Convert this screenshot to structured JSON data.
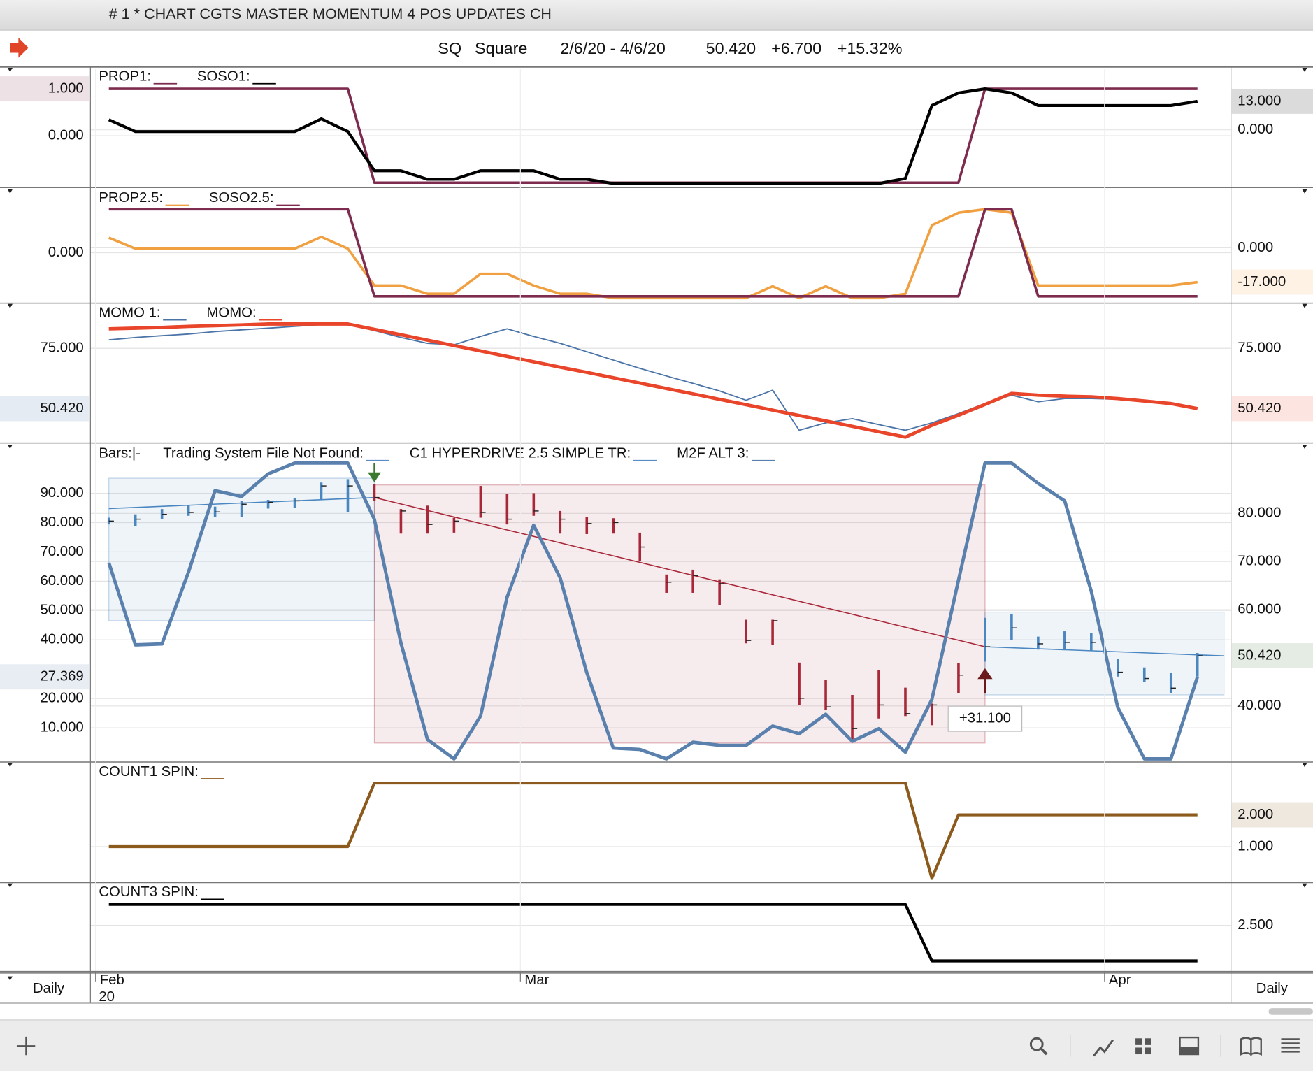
{
  "window": {
    "title": "# 1 * CHART CGTS MASTER MOMENTUM 4 POS UPDATES CH"
  },
  "header": {
    "symbol": "SQ",
    "name": "Square",
    "range": "2/6/20 - 4/6/20",
    "last": "50.420",
    "change": "+6.700",
    "change_pct": "+15.32%"
  },
  "footer": {
    "left_interval": "Daily",
    "right_interval": "Daily",
    "year": "20"
  },
  "chart_data": [
    {
      "type": "line",
      "ylim": [
        -1.07,
        1.43
      ],
      "yticks": [
        {
          "value": 0,
          "label": "0.000"
        }
      ],
      "y2lim": [
        -25.6,
        27.9
      ],
      "y2ticks": [
        {
          "value": 0,
          "label": "0.000"
        }
      ],
      "series": [
        {
          "name": "PROP1:",
          "color": "#7d2b4e",
          "width": 3,
          "axis": "y",
          "last_label": {
            "value": 1,
            "label": "1.000"
          },
          "values": [
            1,
            1,
            1,
            1,
            1,
            1,
            1,
            1,
            1,
            1,
            -1,
            -1,
            -1,
            -1,
            -1,
            -1,
            -1,
            -1,
            -1,
            -1,
            -1,
            -1,
            -1,
            -1,
            -1,
            -1,
            -1,
            -1,
            -1,
            -1,
            -1,
            -1,
            -1,
            1,
            1,
            1,
            1,
            1,
            1,
            1,
            1,
            1
          ]
        },
        {
          "name": "SOSO1:",
          "color": "#000000",
          "width": 3.5,
          "axis": "y2",
          "last_label": {
            "value": 13,
            "label": "13.000"
          },
          "values": [
            4.6,
            -0.8,
            -0.8,
            -0.8,
            -0.8,
            -0.8,
            -0.8,
            -0.8,
            5,
            -0.8,
            -18.7,
            -18.7,
            -22.6,
            -22.6,
            -18.7,
            -18.7,
            -18.7,
            -22.6,
            -22.6,
            -24.5,
            -24.5,
            -24.5,
            -24.5,
            -24.5,
            -24.5,
            -24.5,
            -24.5,
            -24.5,
            -24.5,
            -24.5,
            -22.2,
            11.1,
            16.8,
            18.7,
            16.8,
            11.1,
            11.1,
            11.1,
            11.1,
            11.1,
            11.1,
            13
          ]
        }
      ]
    },
    {
      "type": "line",
      "ylim": [
        -1.12,
        1.44
      ],
      "yticks": [
        {
          "value": 0,
          "label": "0.000"
        }
      ],
      "y2lim": [
        -26.6,
        28.6
      ],
      "y2ticks": [
        {
          "value": 0,
          "label": "0.000"
        }
      ],
      "series": [
        {
          "name": "PROP2.5:",
          "color": "#f0a040",
          "width": 3,
          "axis": "y2",
          "last_label": {
            "value": -17,
            "label": "-17.000"
          },
          "values": [
            5,
            -0.4,
            -0.4,
            -0.4,
            -0.4,
            -0.4,
            -0.4,
            -0.4,
            5.4,
            -0.4,
            -18.7,
            -18.7,
            -22.8,
            -22.8,
            -12.9,
            -12.9,
            -18.7,
            -22.8,
            -22.8,
            -24.9,
            -24.9,
            -24.9,
            -24.9,
            -24.9,
            -24.9,
            -19.1,
            -24.9,
            -19.1,
            -24.9,
            -24.9,
            -22.8,
            11.2,
            17.4,
            19.1,
            17.4,
            -18.7,
            -18.7,
            -18.7,
            -18.7,
            -18.7,
            -18.7,
            -17
          ]
        },
        {
          "name": "SOSO2.5:",
          "color": "#7d2b4e",
          "width": 3,
          "axis": "y",
          "values": [
            1,
            1,
            1,
            1,
            1,
            1,
            1,
            1,
            1,
            1,
            -1,
            -1,
            -1,
            -1,
            -1,
            -1,
            -1,
            -1,
            -1,
            -1,
            -1,
            -1,
            -1,
            -1,
            -1,
            -1,
            -1,
            -1,
            -1,
            -1,
            -1,
            -1,
            -1,
            1,
            1,
            -1,
            -1,
            -1,
            -1,
            -1,
            -1,
            -1
          ]
        }
      ]
    },
    {
      "type": "line",
      "ylim": [
        37.1,
        92.7
      ],
      "yticks": [
        {
          "value": 75,
          "label": "75.000"
        }
      ],
      "y2lim": [
        37.1,
        92.7
      ],
      "y2ticks": [
        {
          "value": 75,
          "label": "75.000"
        }
      ],
      "series": [
        {
          "name": "MOMO 1:",
          "color": "#4a74a8",
          "width": 1.5,
          "axis": "y",
          "last_label": {
            "value": 50.42,
            "label": "50.420"
          },
          "values": [
            78.4,
            79.4,
            80.1,
            80.8,
            81.8,
            82.5,
            83.2,
            83.9,
            84.6,
            84.9,
            82.2,
            79.4,
            77.0,
            76.4,
            79.8,
            82.9,
            79.8,
            77.0,
            73.6,
            70.2,
            66.8,
            63.7,
            60.7,
            57.6,
            53.8,
            57.9,
            41.6,
            44.6,
            46.3,
            43.9,
            41.6,
            44.6,
            48.4,
            52.5,
            55.9,
            53.2,
            54.5,
            54.5,
            54.2,
            53.2,
            52.1,
            50.42
          ]
        },
        {
          "name": "MOMO:",
          "color": "#e8452a",
          "width": 4,
          "axis": "y2",
          "last_label": {
            "value": 50.42,
            "label": "50.420"
          },
          "values": [
            82.9,
            83.2,
            83.5,
            83.9,
            84.2,
            84.5,
            84.9,
            84.9,
            84.9,
            84.9,
            82.7,
            80.5,
            78.3,
            76.1,
            73.9,
            71.7,
            69.5,
            67.3,
            65.2,
            63.0,
            60.8,
            58.6,
            56.4,
            54.2,
            52.0,
            49.8,
            47.6,
            45.4,
            43.2,
            41.0,
            38.8,
            43.6,
            47.7,
            52.1,
            56.6,
            55.9,
            55.5,
            55.2,
            54.5,
            53.5,
            52.5,
            50.42
          ]
        }
      ]
    },
    {
      "type": "bars",
      "ylim": [
        -1.1,
        106.3
      ],
      "yticks": [
        {
          "value": 10,
          "label": "10.000"
        },
        {
          "value": 20,
          "label": "20.000"
        },
        {
          "value": 40,
          "label": "40.000"
        },
        {
          "value": 50,
          "label": "50.000"
        },
        {
          "value": 60,
          "label": "60.000"
        },
        {
          "value": 70,
          "label": "70.000"
        },
        {
          "value": 80,
          "label": "80.000"
        },
        {
          "value": 90,
          "label": "90.000"
        }
      ],
      "y2lim": [
        28.7,
        94.1
      ],
      "y2ticks": [
        {
          "value": 40,
          "label": "40.000"
        },
        {
          "value": 60,
          "label": "60.000"
        },
        {
          "value": 70,
          "label": "70.000"
        },
        {
          "value": 80,
          "label": "80.000"
        }
      ],
      "bars": {
        "name": "Bars:|-",
        "color": "#3f7a3f",
        "axis": "y2",
        "last_label": {
          "value": 50.42,
          "label": "50.420"
        },
        "high": [
          79.1,
          79.8,
          80.9,
          81.6,
          81.4,
          82.6,
          82.8,
          83.1,
          86.4,
          87.1,
          86.1,
          80.9,
          81.6,
          79.1,
          85.7,
          84.0,
          84.2,
          80.5,
          79.3,
          79.0,
          76.0,
          67.3,
          68.3,
          66.3,
          57.9,
          57.9,
          49.0,
          45.4,
          42.3,
          47.5,
          43.8,
          40.5,
          48.9,
          58.3,
          59.1,
          54.4,
          55.5,
          55.1,
          49.7,
          48.0,
          46.8,
          51.0
        ],
        "low": [
          77.7,
          77.4,
          78.8,
          79.5,
          79.3,
          79.3,
          81.0,
          81.2,
          82.8,
          80.3,
          82.6,
          75.8,
          75.8,
          76.0,
          79.1,
          77.7,
          79.5,
          75.8,
          75.7,
          75.8,
          70.1,
          63.5,
          63.5,
          61.0,
          53.0,
          52.7,
          40.2,
          39.1,
          32.7,
          37.4,
          37.9,
          36.0,
          42.6,
          49.2,
          53.7,
          51.7,
          51.7,
          51.5,
          46.1,
          45.0,
          42.6,
          46.1
        ],
        "close": [
          78.4,
          78.8,
          79.8,
          80.2,
          80.3,
          81.9,
          82.3,
          82.6,
          85.7,
          85.7,
          83.3,
          80.5,
          77.7,
          78.4,
          80.2,
          78.8,
          80.5,
          78.8,
          77.9,
          78.1,
          73.0,
          65.7,
          67.1,
          65.4,
          53.6,
          57.7,
          41.6,
          39.8,
          35.3,
          40.2,
          38.4,
          40.2,
          46.4,
          52.3,
          56.2,
          52.9,
          53.2,
          53.2,
          47.0,
          45.7,
          43.7,
          50.42
        ]
      },
      "trading_system": {
        "name": "Trading System File Not Found:",
        "color": "#5b8cc8"
      },
      "regions": {
        "name": "C1 HYPERDRIVE 2.5 SIMPLE TR:",
        "color": "#5b8cc8",
        "items": [
          {
            "from": 0,
            "to": 10,
            "low": 57.7,
            "high": 87.3,
            "trend": [
              81.0,
              83.3
            ],
            "color": "#4a86c0"
          },
          {
            "from": 10,
            "to": 33,
            "low": 32.3,
            "high": 85.9,
            "trend": [
              83.3,
              52.3
            ],
            "color": "#a8283a",
            "arrow": "down",
            "arrow_color": "#3a7a30",
            "label": "+31.100"
          },
          {
            "from": 33,
            "to": 42,
            "low": 42.3,
            "high": 59.5,
            "trend": [
              52.3,
              50.4
            ],
            "color": "#4a86c0",
            "arrow": "up",
            "arrow_color": "#6a1a1a"
          }
        ]
      },
      "series": [
        {
          "name": "M2F ALT 3:",
          "color": "#5a80ad",
          "width": 4,
          "axis": "y",
          "last_label": {
            "value": 27.369,
            "label": "27.369"
          },
          "values": [
            66.3,
            38.3,
            38.6,
            63.1,
            90.9,
            88.9,
            96.6,
            100.3,
            100.3,
            100.3,
            81.1,
            38.9,
            6,
            -0.6,
            14,
            54.6,
            79.1,
            61.1,
            28.9,
            3.1,
            2.6,
            -0.6,
            5.1,
            4,
            4,
            10.6,
            8,
            14.6,
            5.4,
            9.7,
            1.7,
            19.7,
            60.3,
            100.3,
            100.3,
            93.4,
            87.4,
            56.6,
            16.9,
            -0.6,
            -0.6,
            27.369
          ]
        }
      ]
    },
    {
      "type": "line",
      "y2lim": [
        -0.08,
        3.61
      ],
      "y2ticks": [
        {
          "value": 1,
          "label": "1.000"
        }
      ],
      "series": [
        {
          "name": "COUNT1 SPIN:",
          "color": "#8b5a1c",
          "width": 3.5,
          "axis": "y2",
          "last_label": {
            "value": 2,
            "label": "2.000"
          },
          "values": [
            1,
            1,
            1,
            1,
            1,
            1,
            1,
            1,
            1,
            1,
            3,
            3,
            3,
            3,
            3,
            3,
            3,
            3,
            3,
            3,
            3,
            3,
            3,
            3,
            3,
            3,
            3,
            3,
            3,
            3,
            3,
            0,
            2,
            2,
            2,
            2,
            2,
            2,
            2,
            2,
            2,
            2
          ]
        }
      ]
    },
    {
      "type": "line",
      "y2lim": [
        1.4,
        3.48
      ],
      "y2ticks": [
        {
          "value": 2.5,
          "label": "2.500"
        }
      ],
      "categories": [
        "Feb",
        null,
        null,
        null,
        null,
        null,
        null,
        null,
        null,
        null,
        null,
        null,
        null,
        null,
        null,
        null,
        "Mar",
        null,
        null,
        null,
        null,
        null,
        null,
        null,
        null,
        null,
        null,
        null,
        null,
        null,
        null,
        null,
        null,
        null,
        null,
        null,
        null,
        null,
        "Apr",
        null,
        null,
        null
      ],
      "series": [
        {
          "name": "COUNT3 SPIN:",
          "color": "#000000",
          "width": 3.5,
          "axis": "y2",
          "values": [
            3,
            3,
            3,
            3,
            3,
            3,
            3,
            3,
            3,
            3,
            3,
            3,
            3,
            3,
            3,
            3,
            3,
            3,
            3,
            3,
            3,
            3,
            3,
            3,
            3,
            3,
            3,
            3,
            3,
            3,
            3,
            1.65,
            1.65,
            1.65,
            1.65,
            1.65,
            1.65,
            1.65,
            1.65,
            1.65,
            1.65,
            1.65
          ]
        }
      ]
    }
  ]
}
